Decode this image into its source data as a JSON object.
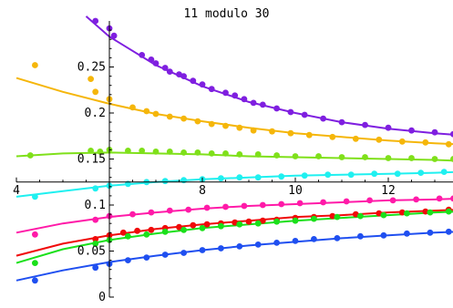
{
  "chart_data": {
    "type": "scatter",
    "title": "11 modulo 30",
    "xlabel": "",
    "ylabel": "",
    "xlim": [
      4,
      13.5
    ],
    "ylim": [
      0,
      0.3
    ],
    "grid": false,
    "legend": "none",
    "x_axis_crosses_y_at": 0.125,
    "y_axis_crosses_x_at": 6,
    "x_ticks": [
      4,
      6,
      8,
      10,
      12
    ],
    "x_tick_labels": [
      "4",
      "",
      "8",
      "10",
      "12"
    ],
    "y_ticks": [
      0,
      0.05,
      0.1,
      0.15,
      0.2,
      0.25
    ],
    "y_tick_labels": [
      "0",
      "0.05",
      "0.1",
      "0.15",
      "0.2",
      "0.25"
    ],
    "series": [
      {
        "color": "#7f1fe0",
        "curve": {
          "x": [
            5.5,
            6,
            7,
            8,
            9,
            10,
            11,
            12,
            13,
            13.5
          ],
          "y": [
            0.305,
            0.283,
            0.252,
            0.229,
            0.212,
            0.2,
            0.19,
            0.183,
            0.178,
            0.176
          ]
        },
        "points": {
          "x": [
            5.7,
            6.0,
            6.1,
            6.7,
            6.9,
            7.0,
            7.2,
            7.3,
            7.5,
            7.6,
            7.8,
            8.0,
            8.2,
            8.5,
            8.7,
            8.9,
            9.1,
            9.3,
            9.6,
            9.9,
            10.2,
            10.6,
            11.0,
            11.5,
            12.0,
            12.5,
            13.0,
            13.4
          ],
          "y": [
            0.3,
            0.292,
            0.284,
            0.263,
            0.258,
            0.254,
            0.249,
            0.245,
            0.242,
            0.24,
            0.235,
            0.231,
            0.226,
            0.222,
            0.219,
            0.215,
            0.211,
            0.209,
            0.205,
            0.201,
            0.198,
            0.194,
            0.19,
            0.187,
            0.184,
            0.181,
            0.179,
            0.177
          ]
        }
      },
      {
        "color": "#f5b60a",
        "curve": {
          "x": [
            4,
            5,
            6,
            7,
            8,
            9,
            10,
            11,
            12,
            13,
            13.5
          ],
          "y": [
            0.238,
            0.223,
            0.21,
            0.199,
            0.191,
            0.184,
            0.178,
            0.174,
            0.17,
            0.167,
            0.166
          ]
        },
        "points": {
          "x": [
            4.4,
            5.6,
            5.7,
            6.0,
            6.5,
            6.8,
            7.0,
            7.3,
            7.6,
            7.9,
            8.2,
            8.5,
            8.8,
            9.1,
            9.5,
            9.9,
            10.3,
            10.8,
            11.3,
            11.8,
            12.3,
            12.8,
            13.3
          ],
          "y": [
            0.252,
            0.237,
            0.223,
            0.215,
            0.206,
            0.202,
            0.199,
            0.196,
            0.194,
            0.191,
            0.188,
            0.186,
            0.184,
            0.181,
            0.18,
            0.178,
            0.176,
            0.174,
            0.172,
            0.171,
            0.169,
            0.168,
            0.166
          ]
        }
      },
      {
        "color": "#7fe01a",
        "curve": {
          "x": [
            4,
            5,
            6,
            7,
            8,
            9,
            10,
            11,
            12,
            13,
            13.5
          ],
          "y": [
            0.153,
            0.156,
            0.157,
            0.156,
            0.155,
            0.153,
            0.152,
            0.151,
            0.15,
            0.149,
            0.148
          ]
        },
        "points": {
          "x": [
            4.3,
            5.6,
            5.8,
            6.0,
            6.4,
            6.7,
            7.0,
            7.3,
            7.6,
            7.9,
            8.2,
            8.5,
            8.8,
            9.2,
            9.6,
            10.0,
            10.5,
            11.0,
            11.5,
            12.0,
            12.5,
            13.0,
            13.4
          ],
          "y": [
            0.154,
            0.159,
            0.158,
            0.16,
            0.159,
            0.159,
            0.158,
            0.158,
            0.157,
            0.157,
            0.156,
            0.156,
            0.155,
            0.155,
            0.154,
            0.153,
            0.153,
            0.152,
            0.152,
            0.151,
            0.151,
            0.15,
            0.15
          ]
        }
      },
      {
        "color": "#1ff0f0",
        "curve": {
          "x": [
            4,
            5,
            6,
            7,
            8,
            9,
            10,
            11,
            12,
            13,
            13.5
          ],
          "y": [
            0.109,
            0.115,
            0.121,
            0.125,
            0.128,
            0.13,
            0.132,
            0.133,
            0.134,
            0.135,
            0.136
          ]
        },
        "points": {
          "x": [
            4.4,
            5.7,
            6.0,
            6.4,
            6.8,
            7.2,
            7.6,
            8.0,
            8.4,
            8.8,
            9.2,
            9.7,
            10.2,
            10.7,
            11.2,
            11.7,
            12.2,
            12.7,
            13.2
          ],
          "y": [
            0.109,
            0.118,
            0.121,
            0.123,
            0.125,
            0.126,
            0.127,
            0.128,
            0.129,
            0.13,
            0.13,
            0.131,
            0.132,
            0.133,
            0.133,
            0.134,
            0.134,
            0.135,
            0.136
          ]
        }
      },
      {
        "color": "#ff1aa8",
        "curve": {
          "x": [
            4,
            5,
            6,
            7,
            8,
            9,
            10,
            11,
            12,
            13,
            13.5
          ],
          "y": [
            0.07,
            0.08,
            0.087,
            0.092,
            0.096,
            0.099,
            0.101,
            0.103,
            0.105,
            0.106,
            0.107
          ]
        },
        "points": {
          "x": [
            4.4,
            5.7,
            6.0,
            6.5,
            6.9,
            7.3,
            7.7,
            8.1,
            8.5,
            8.9,
            9.3,
            9.7,
            10.1,
            10.6,
            11.1,
            11.6,
            12.1,
            12.6,
            13.1,
            13.4
          ],
          "y": [
            0.068,
            0.084,
            0.088,
            0.09,
            0.092,
            0.094,
            0.095,
            0.097,
            0.098,
            0.099,
            0.1,
            0.101,
            0.102,
            0.103,
            0.104,
            0.105,
            0.105,
            0.106,
            0.107,
            0.107
          ]
        }
      },
      {
        "color": "#f00a0a",
        "curve": {
          "x": [
            4,
            5,
            6,
            7,
            8,
            9,
            10,
            11,
            12,
            13,
            13.5
          ],
          "y": [
            0.045,
            0.058,
            0.067,
            0.074,
            0.079,
            0.083,
            0.087,
            0.089,
            0.092,
            0.094,
            0.095
          ]
        },
        "points": {
          "x": [
            5.7,
            6.0,
            6.3,
            6.6,
            6.9,
            7.2,
            7.5,
            7.8,
            8.1,
            8.4,
            8.7,
            9.0,
            9.3,
            9.6,
            10.0,
            10.4,
            10.8,
            11.3,
            11.8,
            12.3,
            12.8,
            13.3
          ],
          "y": [
            0.063,
            0.067,
            0.07,
            0.072,
            0.073,
            0.075,
            0.076,
            0.078,
            0.079,
            0.08,
            0.081,
            0.082,
            0.083,
            0.084,
            0.086,
            0.087,
            0.088,
            0.09,
            0.091,
            0.092,
            0.093,
            0.095
          ]
        }
      },
      {
        "color": "#1ae01a",
        "curve": {
          "x": [
            4,
            5,
            6,
            7,
            8,
            9,
            10,
            11,
            12,
            13,
            13.5
          ],
          "y": [
            0.037,
            0.052,
            0.062,
            0.069,
            0.075,
            0.079,
            0.083,
            0.086,
            0.089,
            0.092,
            0.093
          ]
        },
        "points": {
          "x": [
            4.4,
            5.7,
            6.0,
            6.4,
            6.8,
            7.2,
            7.6,
            8.0,
            8.4,
            8.8,
            9.2,
            9.6,
            10.0,
            10.4,
            10.9,
            11.4,
            11.9,
            12.4,
            12.9,
            13.3
          ],
          "y": [
            0.037,
            0.058,
            0.062,
            0.066,
            0.068,
            0.071,
            0.073,
            0.075,
            0.077,
            0.079,
            0.08,
            0.082,
            0.083,
            0.085,
            0.087,
            0.088,
            0.089,
            0.091,
            0.092,
            0.093
          ]
        }
      },
      {
        "color": "#1f4ff0",
        "curve": {
          "x": [
            4,
            5,
            6,
            7,
            8,
            9,
            10,
            11,
            12,
            13,
            13.5
          ],
          "y": [
            0.018,
            0.029,
            0.038,
            0.045,
            0.051,
            0.056,
            0.06,
            0.064,
            0.067,
            0.07,
            0.071
          ]
        },
        "points": {
          "x": [
            4.4,
            5.7,
            6.0,
            6.4,
            6.8,
            7.2,
            7.6,
            8.0,
            8.4,
            8.8,
            9.2,
            9.6,
            10.0,
            10.4,
            10.9,
            11.4,
            11.9,
            12.4,
            12.9,
            13.3
          ],
          "y": [
            0.018,
            0.032,
            0.036,
            0.04,
            0.043,
            0.046,
            0.048,
            0.051,
            0.053,
            0.055,
            0.057,
            0.059,
            0.061,
            0.063,
            0.064,
            0.066,
            0.067,
            0.069,
            0.07,
            0.071
          ]
        }
      }
    ]
  }
}
